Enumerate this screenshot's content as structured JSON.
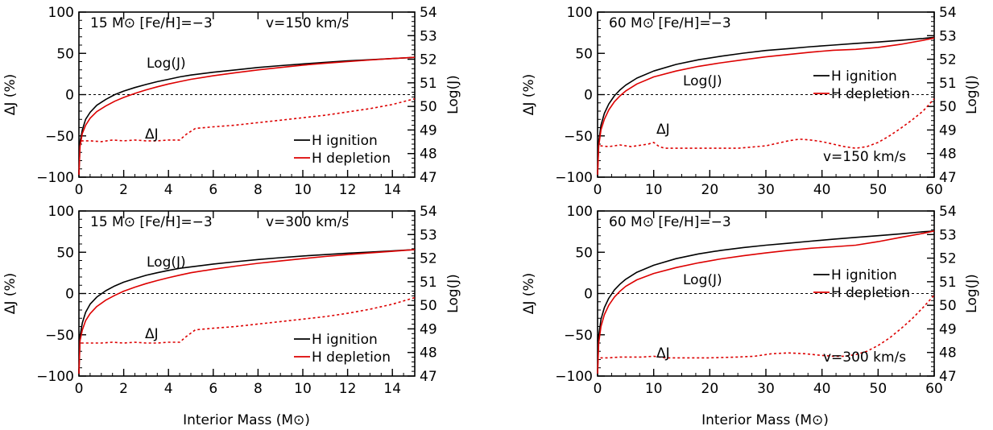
{
  "figure": {
    "x_axis_title": "Interior Mass (M⊙)",
    "y_left_title": "ΔJ (%)",
    "y_right_title": "Log(J)"
  },
  "chart_data": [
    {
      "type": "line",
      "panel": "top-left",
      "title": "15 M⊙  [Fe/H]=−3",
      "velocity_label": "v=150 km/s",
      "xlabel": "",
      "ylabel": "ΔJ (%)",
      "y2label": "Log(J)",
      "xlim": [
        0,
        15
      ],
      "ylim": [
        -100,
        100
      ],
      "y2lim": [
        47,
        54
      ],
      "xticks": [
        "0",
        "2",
        "4",
        "6",
        "8",
        "10",
        "12",
        "14"
      ],
      "yticks": [
        "100",
        "50",
        "0",
        "−50",
        "−100"
      ],
      "y2ticks": [
        "54",
        "53",
        "52",
        "51",
        "50",
        "49",
        "48",
        "47"
      ],
      "zero_line": true,
      "annotations": [
        "Log(J)",
        "ΔJ"
      ],
      "legend": {
        "position": "bottom-right",
        "entries": [
          "H ignition",
          "H depletion"
        ]
      },
      "series": [
        {
          "name": "H ignition",
          "axis": "right",
          "color": "#000000",
          "style": "solid",
          "x": [
            0,
            0.05,
            0.15,
            0.3,
            0.5,
            0.8,
            1.2,
            1.6,
            2,
            2.5,
            3,
            3.5,
            4,
            4.5,
            5,
            6,
            7,
            8,
            9,
            10,
            11,
            12,
            13,
            14,
            15
          ],
          "y": [
            47.1,
            48.5,
            49.0,
            49.45,
            49.75,
            50.05,
            50.3,
            50.5,
            50.65,
            50.8,
            50.93,
            51.05,
            51.15,
            51.25,
            51.33,
            51.45,
            51.55,
            51.65,
            51.73,
            51.8,
            51.87,
            51.93,
            51.98,
            52.03,
            52.08
          ]
        },
        {
          "name": "H depletion",
          "axis": "right",
          "color": "#dd0000",
          "style": "solid",
          "x": [
            0,
            0.05,
            0.15,
            0.3,
            0.5,
            0.8,
            1.2,
            1.6,
            2,
            2.5,
            3,
            3.5,
            4,
            4.5,
            5,
            6,
            7,
            8,
            9,
            10,
            11,
            12,
            13,
            14,
            15
          ],
          "y": [
            47.1,
            48.3,
            48.85,
            49.2,
            49.5,
            49.78,
            50.02,
            50.22,
            50.38,
            50.55,
            50.7,
            50.83,
            50.95,
            51.05,
            51.15,
            51.3,
            51.43,
            51.55,
            51.65,
            51.75,
            51.83,
            51.9,
            51.97,
            52.03,
            52.08
          ]
        },
        {
          "name": "ΔJ",
          "axis": "left",
          "color": "#dd0000",
          "style": "dashed",
          "x": [
            0.1,
            0.5,
            1,
            1.5,
            2,
            2.5,
            3,
            3.5,
            4,
            4.5,
            4.8,
            5.2,
            6,
            7,
            8,
            9,
            10,
            11,
            12,
            13,
            14,
            15
          ],
          "y": [
            -56,
            -56,
            -57,
            -55,
            -56,
            -55,
            -56,
            -56,
            -55,
            -55,
            -48,
            -41,
            -39,
            -37,
            -34,
            -31,
            -28,
            -25,
            -21,
            -17,
            -12,
            -5
          ]
        }
      ]
    },
    {
      "type": "line",
      "panel": "top-right",
      "title": "60 M⊙  [Fe/H]=−3",
      "velocity_label": "v=150 km/s",
      "xlabel": "",
      "ylabel": "ΔJ (%)",
      "y2label": "Log(J)",
      "xlim": [
        0,
        60
      ],
      "ylim": [
        -100,
        100
      ],
      "y2lim": [
        47,
        54
      ],
      "xticks": [
        "0",
        "10",
        "20",
        "30",
        "40",
        "50",
        "60"
      ],
      "yticks": [
        "100",
        "50",
        "0",
        "−50",
        "−100"
      ],
      "y2ticks": [
        "54",
        "53",
        "52",
        "51",
        "50",
        "49",
        "48",
        "47"
      ],
      "zero_line": true,
      "annotations": [
        "Log(J)",
        "ΔJ"
      ],
      "legend": {
        "position": "top-right",
        "entries": [
          "H ignition",
          "H depletion"
        ]
      },
      "series": [
        {
          "name": "H ignition",
          "axis": "right",
          "color": "#000000",
          "style": "solid",
          "x": [
            0,
            0.2,
            0.6,
            1.2,
            2,
            3,
            4,
            5,
            7,
            10,
            14,
            18,
            22,
            26,
            30,
            34,
            38,
            42,
            46,
            50,
            54,
            58,
            60
          ],
          "y": [
            47.1,
            48.5,
            49.2,
            49.7,
            50.1,
            50.45,
            50.7,
            50.9,
            51.2,
            51.5,
            51.78,
            51.98,
            52.13,
            52.26,
            52.37,
            52.45,
            52.53,
            52.6,
            52.67,
            52.73,
            52.8,
            52.88,
            52.93
          ]
        },
        {
          "name": "H depletion",
          "axis": "right",
          "color": "#dd0000",
          "style": "solid",
          "x": [
            0,
            0.2,
            0.6,
            1.2,
            2,
            3,
            4,
            5,
            7,
            10,
            14,
            18,
            22,
            26,
            30,
            34,
            38,
            42,
            46,
            50,
            54,
            58,
            60
          ],
          "y": [
            47.1,
            48.3,
            49.0,
            49.45,
            49.85,
            50.2,
            50.45,
            50.65,
            50.95,
            51.25,
            51.5,
            51.7,
            51.85,
            51.98,
            52.1,
            52.2,
            52.3,
            52.38,
            52.42,
            52.5,
            52.63,
            52.8,
            52.9
          ]
        },
        {
          "name": "ΔJ",
          "axis": "left",
          "color": "#dd0000",
          "style": "dashed",
          "x": [
            0.5,
            2,
            4,
            6,
            8,
            9,
            10,
            11,
            12,
            15,
            20,
            25,
            30,
            32,
            34,
            36,
            38,
            40,
            42,
            44,
            46,
            48,
            50,
            52,
            54,
            56,
            58,
            60
          ],
          "y": [
            -62,
            -63,
            -61,
            -63,
            -61,
            -60,
            -58,
            -63,
            -65,
            -65,
            -65,
            -65,
            -62,
            -59,
            -56,
            -54,
            -55,
            -57,
            -60,
            -63,
            -65,
            -63,
            -58,
            -50,
            -41,
            -31,
            -20,
            -5
          ]
        }
      ]
    },
    {
      "type": "line",
      "panel": "bottom-left",
      "title": "15 M⊙  [Fe/H]=−3",
      "velocity_label": "v=300 km/s",
      "xlabel": "Interior Mass (M⊙)",
      "ylabel": "ΔJ (%)",
      "y2label": "Log(J)",
      "xlim": [
        0,
        15
      ],
      "ylim": [
        -100,
        100
      ],
      "y2lim": [
        47,
        54
      ],
      "xticks": [
        "0",
        "2",
        "4",
        "6",
        "8",
        "10",
        "12",
        "14"
      ],
      "yticks": [
        "100",
        "50",
        "0",
        "−50",
        "−100"
      ],
      "y2ticks": [
        "54",
        "53",
        "52",
        "51",
        "50",
        "49",
        "48",
        "47"
      ],
      "zero_line": true,
      "annotations": [
        "Log(J)",
        "ΔJ"
      ],
      "legend": {
        "position": "bottom-right",
        "entries": [
          "H ignition",
          "H depletion"
        ]
      },
      "series": [
        {
          "name": "H ignition",
          "axis": "right",
          "color": "#000000",
          "style": "solid",
          "x": [
            0,
            0.05,
            0.15,
            0.3,
            0.5,
            0.8,
            1.2,
            1.6,
            2,
            2.5,
            3,
            3.5,
            4,
            4.5,
            5,
            6,
            7,
            8,
            9,
            10,
            11,
            12,
            13,
            14,
            15
          ],
          "y": [
            47.1,
            48.7,
            49.25,
            49.7,
            50.05,
            50.35,
            50.62,
            50.82,
            50.98,
            51.13,
            51.27,
            51.38,
            51.48,
            51.57,
            51.63,
            51.75,
            51.85,
            51.94,
            52.02,
            52.09,
            52.15,
            52.21,
            52.26,
            52.31,
            52.36
          ]
        },
        {
          "name": "H depletion",
          "axis": "right",
          "color": "#dd0000",
          "style": "solid",
          "x": [
            0,
            0.05,
            0.15,
            0.3,
            0.5,
            0.8,
            1.2,
            1.6,
            2,
            2.5,
            3,
            3.5,
            4,
            4.5,
            5,
            6,
            7,
            8,
            9,
            10,
            11,
            12,
            13,
            14,
            15
          ],
          "y": [
            47.1,
            48.5,
            48.95,
            49.35,
            49.65,
            49.95,
            50.22,
            50.42,
            50.6,
            50.77,
            50.92,
            51.05,
            51.17,
            51.28,
            51.38,
            51.53,
            51.66,
            51.78,
            51.88,
            51.98,
            52.07,
            52.15,
            52.22,
            52.29,
            52.36
          ]
        },
        {
          "name": "ΔJ",
          "axis": "left",
          "color": "#dd0000",
          "style": "dashed",
          "x": [
            0.1,
            0.5,
            1,
            1.5,
            2,
            2.5,
            3,
            3.5,
            4,
            4.5,
            4.8,
            5.2,
            6,
            7,
            8,
            9,
            10,
            11,
            12,
            13,
            14,
            15
          ],
          "y": [
            -60,
            -60,
            -60,
            -59,
            -60,
            -59,
            -60,
            -60,
            -59,
            -59,
            -52,
            -44,
            -42,
            -40,
            -37,
            -34,
            -31,
            -28,
            -24,
            -19,
            -13,
            -5
          ]
        }
      ]
    },
    {
      "type": "line",
      "panel": "bottom-right",
      "title": "60 M⊙  [Fe/H]=−3",
      "velocity_label": "v=300 km/s",
      "xlabel": "Interior Mass (M⊙)",
      "ylabel": "ΔJ (%)",
      "y2label": "Log(J)",
      "xlim": [
        0,
        60
      ],
      "ylim": [
        -100,
        100
      ],
      "y2lim": [
        47,
        54
      ],
      "xticks": [
        "0",
        "10",
        "20",
        "30",
        "40",
        "50",
        "60"
      ],
      "yticks": [
        "100",
        "50",
        "0",
        "−50",
        "−100"
      ],
      "y2ticks": [
        "54",
        "53",
        "52",
        "51",
        "50",
        "49",
        "48",
        "47"
      ],
      "zero_line": true,
      "annotations": [
        "Log(J)",
        "ΔJ"
      ],
      "legend": {
        "position": "top-right",
        "entries": [
          "H ignition",
          "H depletion"
        ]
      },
      "series": [
        {
          "name": "H ignition",
          "axis": "right",
          "color": "#000000",
          "style": "solid",
          "x": [
            0,
            0.2,
            0.6,
            1.2,
            2,
            3,
            4,
            5,
            7,
            10,
            14,
            18,
            22,
            26,
            30,
            34,
            38,
            42,
            46,
            50,
            54,
            58,
            60
          ],
          "y": [
            47.1,
            48.7,
            49.4,
            49.9,
            50.3,
            50.65,
            50.9,
            51.1,
            51.4,
            51.7,
            51.98,
            52.18,
            52.33,
            52.45,
            52.55,
            52.63,
            52.72,
            52.8,
            52.88,
            52.95,
            53.03,
            53.12,
            53.15
          ]
        },
        {
          "name": "H depletion",
          "axis": "right",
          "color": "#dd0000",
          "style": "solid",
          "x": [
            0,
            0.2,
            0.6,
            1.2,
            2,
            3,
            4,
            5,
            7,
            10,
            14,
            18,
            22,
            26,
            30,
            34,
            38,
            42,
            46,
            50,
            54,
            58,
            60
          ],
          "y": [
            47.1,
            48.4,
            49.1,
            49.6,
            50.0,
            50.35,
            50.6,
            50.8,
            51.08,
            51.35,
            51.6,
            51.8,
            51.97,
            52.1,
            52.22,
            52.33,
            52.42,
            52.48,
            52.55,
            52.7,
            52.88,
            53.05,
            53.15
          ]
        },
        {
          "name": "ΔJ",
          "axis": "left",
          "color": "#dd0000",
          "style": "dashed",
          "x": [
            0.5,
            2,
            4,
            6,
            8,
            10,
            12,
            15,
            20,
            25,
            28,
            31,
            34,
            37,
            40,
            42,
            44,
            46,
            48,
            50,
            52,
            54,
            56,
            58,
            60
          ],
          "y": [
            -78,
            -78,
            -77,
            -77,
            -77,
            -76,
            -78,
            -78,
            -78,
            -77,
            -76,
            -73,
            -72,
            -73,
            -75,
            -76,
            -76,
            -74,
            -70,
            -63,
            -54,
            -43,
            -31,
            -17,
            -2
          ]
        }
      ]
    }
  ]
}
